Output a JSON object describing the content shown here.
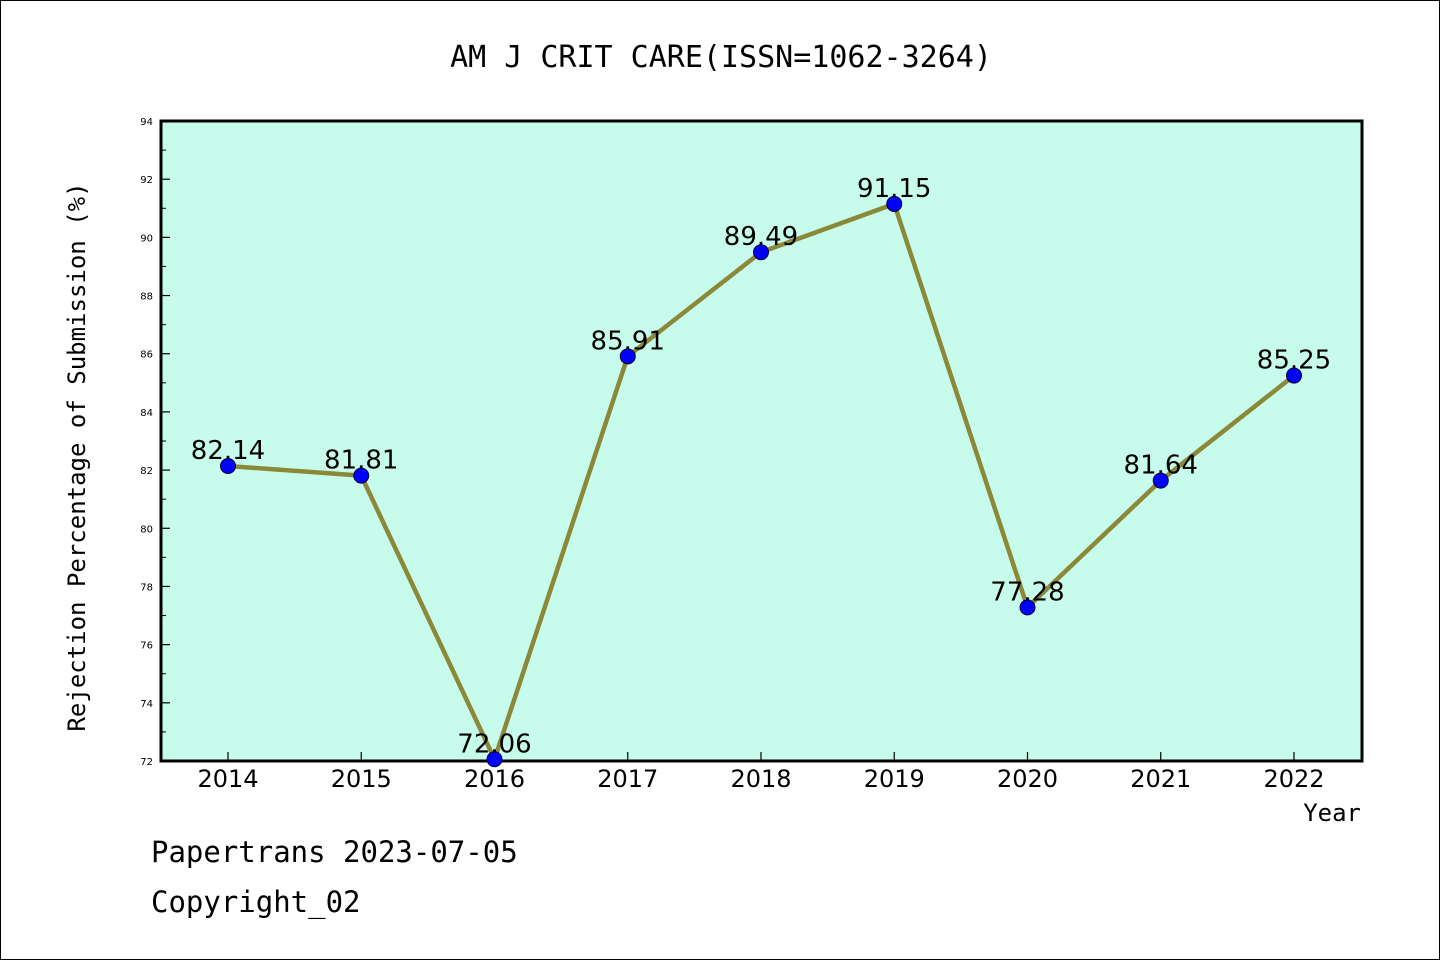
{
  "chart_data": {
    "type": "line",
    "title": "AM J CRIT CARE(ISSN=1062-3264)",
    "xlabel": "Year",
    "ylabel": "Rejection Percentage of Submission (%)",
    "categories": [
      "2014",
      "2015",
      "2016",
      "2017",
      "2018",
      "2019",
      "2020",
      "2021",
      "2022"
    ],
    "values": [
      82.14,
      81.81,
      72.06,
      85.91,
      89.49,
      91.15,
      77.28,
      81.64,
      85.25
    ],
    "data_labels": [
      "82.14",
      "81.81",
      "72.06",
      "85.91",
      "89.49",
      "91.15",
      "77.28",
      "81.64",
      "85.25"
    ],
    "ylim": [
      72,
      94
    ],
    "yticks": [
      72,
      74,
      76,
      78,
      80,
      82,
      84,
      86,
      88,
      90,
      92,
      94
    ],
    "grid": false,
    "colors": {
      "plot_background": "#c7fcec",
      "line": "#8b8838",
      "marker": "#0000ff"
    }
  },
  "footer": {
    "line1": "Papertrans 2023-07-05",
    "line2": "Copyright_02"
  }
}
